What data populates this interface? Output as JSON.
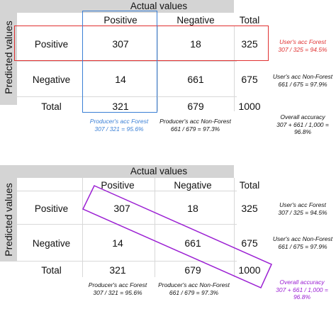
{
  "colors": {
    "header_bg": "#d4d4d4",
    "forest_red": "#e03030",
    "forest_blue": "#3a7fd5",
    "overall_purple": "#9b1fd3"
  },
  "matrix": {
    "actual_label": "Actual values",
    "predicted_label": "Predicted values",
    "col_positive": "Positive",
    "col_negative": "Negative",
    "col_total": "Total",
    "row_positive": "Positive",
    "row_negative": "Negative",
    "row_total": "Total",
    "tp": "307",
    "fp": "18",
    "row1_total": "325",
    "fn": "14",
    "tn": "661",
    "row2_total": "675",
    "col1_total": "321",
    "col2_total": "679",
    "grand_total": "1000"
  },
  "notes": {
    "users_forest": [
      "User's acc Forest",
      "307 / 325 = 94.5%"
    ],
    "users_nonforest": [
      "User's acc Non-Forest",
      "661 / 675 = 97.9%"
    ],
    "producers_forest": [
      "Producer's acc Forest",
      "307 / 321 = 95.6%"
    ],
    "producers_nonforest": [
      "Producer's acc Non-Forest",
      "661 / 679 = 97.3%"
    ],
    "overall": [
      "Overall accuracy",
      "307 + 661 / 1,000 =",
      "96.8%"
    ]
  }
}
